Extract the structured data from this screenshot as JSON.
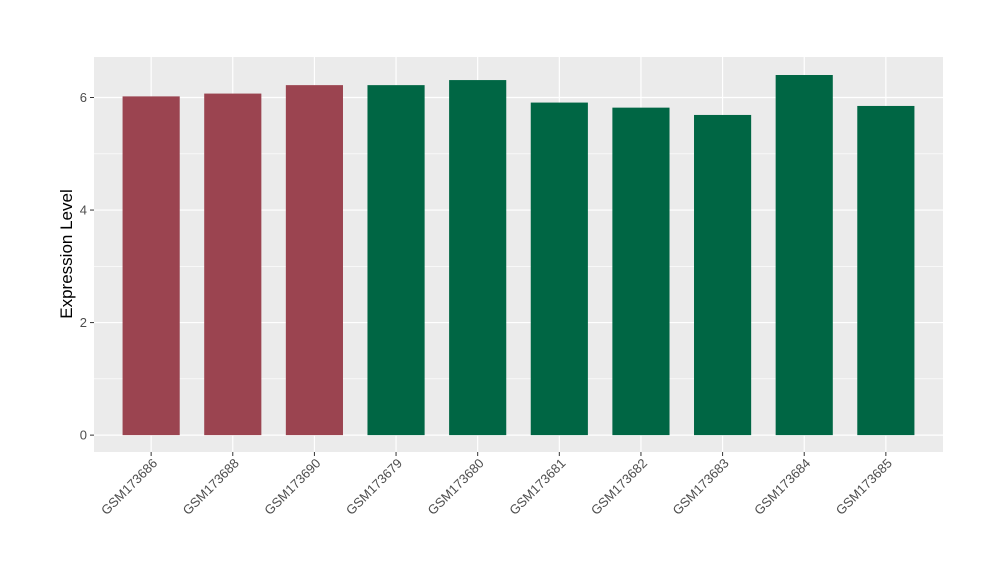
{
  "chart_data": {
    "type": "bar",
    "title": "",
    "xlabel": "",
    "ylabel": "Expression Level",
    "ylim": [
      -0.3,
      6.72
    ],
    "yticks": [
      0,
      2,
      4,
      6
    ],
    "grid": true,
    "legend": "none",
    "categories": [
      "GSM173686",
      "GSM173688",
      "GSM173690",
      "GSM173679",
      "GSM173680",
      "GSM173681",
      "GSM173682",
      "GSM173683",
      "GSM173684",
      "GSM173685"
    ],
    "values": [
      6.02,
      6.07,
      6.22,
      6.22,
      6.31,
      5.91,
      5.82,
      5.69,
      6.4,
      5.85
    ],
    "bar_colors": [
      "#9b4450",
      "#9b4450",
      "#9b4450",
      "#006644",
      "#006644",
      "#006644",
      "#006644",
      "#006644",
      "#006644",
      "#006644"
    ],
    "panel_background": "#ebebeb",
    "gridline_color": "#ffffff"
  }
}
